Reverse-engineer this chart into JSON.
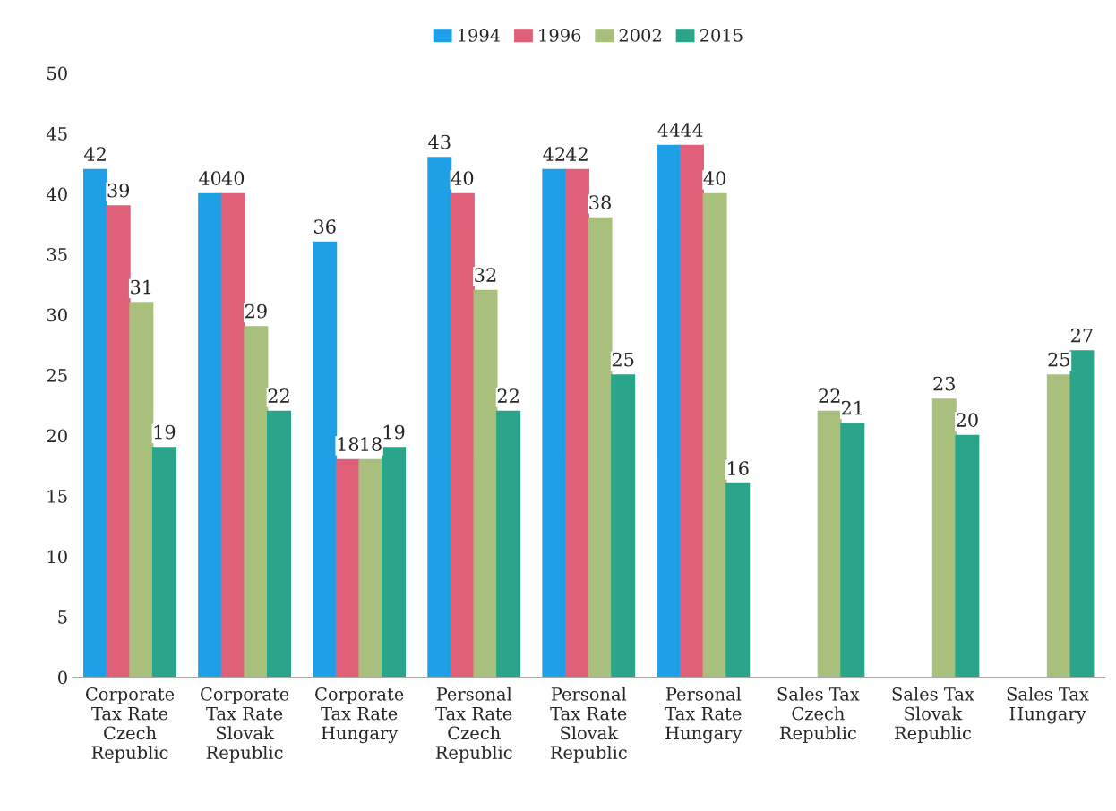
{
  "chart_data": {
    "type": "bar",
    "categories": [
      "Corporate\nTax Rate\nCzech\nRepublic",
      "Corporate\nTax Rate\nSlovak\nRepublic",
      "Corporate\nTax Rate\nHungary",
      "Personal\nTax Rate\nCzech\nRepublic",
      "Personal\nTax Rate\nSlovak\nRepublic",
      "Personal\nTax Rate\nHungary",
      "Sales Tax\nCzech\nRepublic",
      "Sales Tax\nSlovak\nRepublic",
      "Sales Tax\nHungary"
    ],
    "series": [
      {
        "name": "1994",
        "color": "#1ea0e6",
        "values": [
          42,
          40,
          36,
          43,
          42,
          44,
          null,
          null,
          null
        ]
      },
      {
        "name": "1996",
        "color": "#e0607a",
        "values": [
          39,
          40,
          18,
          40,
          42,
          44,
          null,
          null,
          null
        ]
      },
      {
        "name": "2002",
        "color": "#a8c07c",
        "values": [
          31,
          29,
          18,
          32,
          38,
          40,
          22,
          23,
          25
        ]
      },
      {
        "name": "2015",
        "color": "#2aa58a",
        "values": [
          19,
          22,
          19,
          22,
          25,
          16,
          21,
          20,
          27
        ]
      }
    ],
    "ylim": [
      0,
      50
    ],
    "yticks": [
      0,
      5,
      10,
      15,
      20,
      25,
      30,
      35,
      40,
      45,
      50
    ],
    "data_labels": true,
    "legend": "top",
    "grid": false
  }
}
